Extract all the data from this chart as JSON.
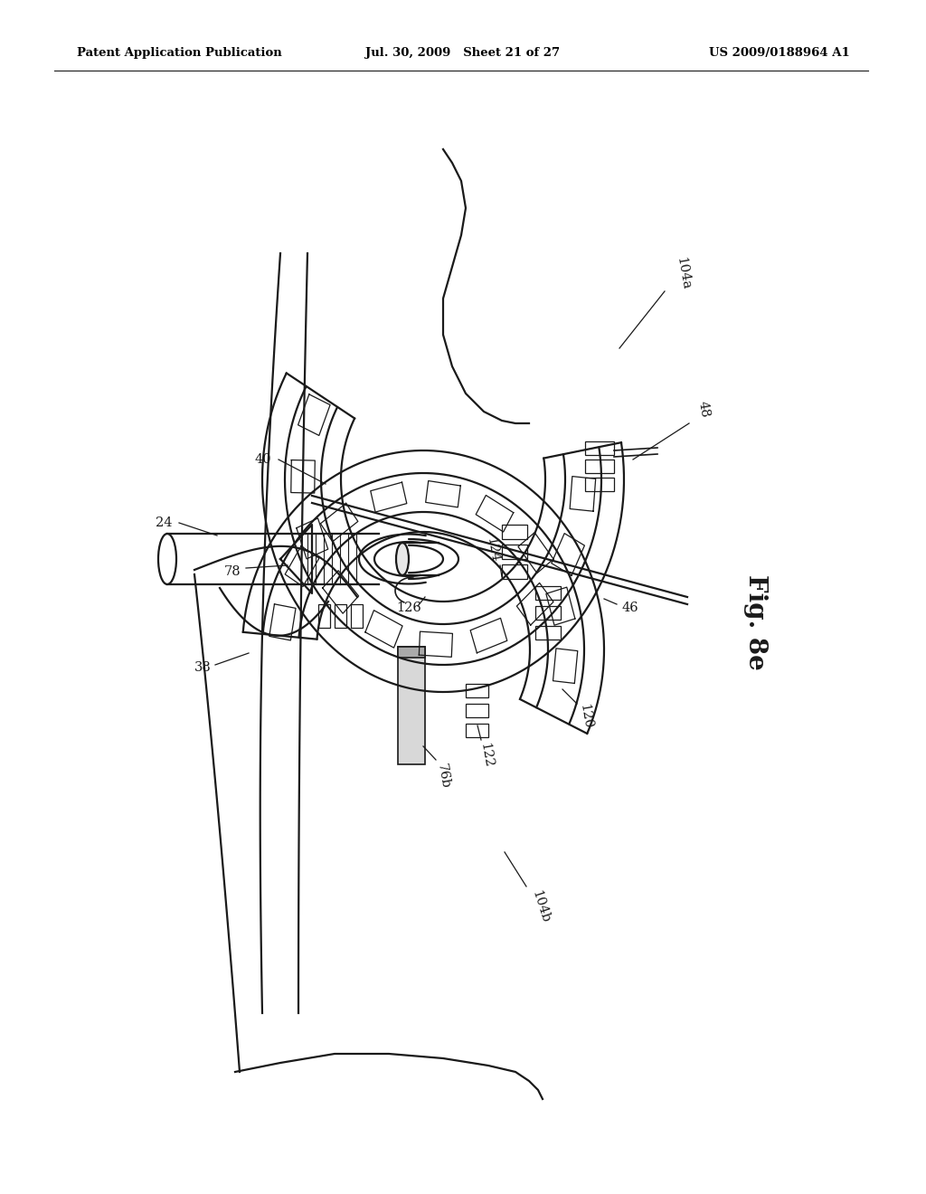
{
  "bg_color": "#ffffff",
  "lc": "#1a1a1a",
  "header_left": "Patent Application Publication",
  "header_mid": "Jul. 30, 2009   Sheet 21 of 27",
  "header_right": "US 2009/0188964 A1",
  "fig_label": "Fig. 8e"
}
